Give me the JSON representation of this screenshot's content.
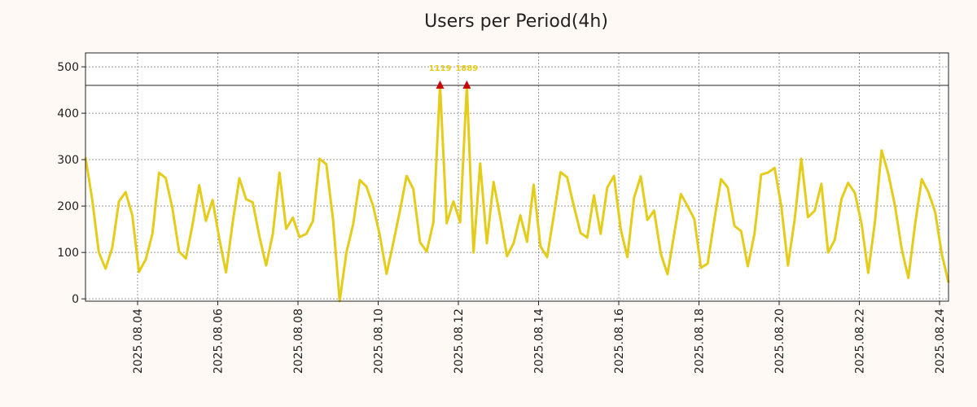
{
  "chart_data": {
    "type": "line",
    "title": "Users per Period(4h)",
    "xlabel": "",
    "ylabel": "",
    "ylim": [
      -5,
      530
    ],
    "y_ticks": [
      0,
      100,
      200,
      300,
      400,
      500
    ],
    "x_tick_labels": [
      "2025.08.04",
      "2025.08.06",
      "2025.08.08",
      "2025.08.10",
      "2025.08.12",
      "2025.08.14",
      "2025.08.16",
      "2025.08.18",
      "2025.08.20",
      "2025.08.22",
      "2025.08.24"
    ],
    "grid": true,
    "threshold": 460,
    "series": [
      {
        "name": "users",
        "color": "#e6cc1a",
        "values": [
          305,
          215,
          100,
          65,
          110,
          210,
          230,
          180,
          58,
          85,
          140,
          272,
          260,
          195,
          102,
          87,
          160,
          245,
          168,
          213,
          130,
          57,
          165,
          260,
          215,
          208,
          135,
          72,
          140,
          272,
          151,
          175,
          133,
          140,
          168,
          302,
          290,
          172,
          -5,
          100,
          160,
          256,
          242,
          200,
          136,
          54,
          120,
          190,
          265,
          237,
          122,
          102,
          165,
          460,
          163,
          210,
          165,
          460,
          100,
          292,
          120,
          252,
          175,
          92,
          120,
          180,
          123,
          246,
          113,
          90,
          180,
          273,
          262,
          200,
          142,
          132,
          223,
          140,
          240,
          265,
          150,
          90,
          218,
          264,
          170,
          190,
          97,
          53,
          140,
          226,
          200,
          172,
          67,
          76,
          170,
          258,
          240,
          157,
          146,
          70,
          140,
          268,
          272,
          282,
          200,
          72,
          170,
          302,
          176,
          190,
          248,
          100,
          127,
          215,
          250,
          228,
          162,
          56,
          165,
          320,
          270,
          200,
          108,
          45,
          160,
          258,
          230,
          187,
          96,
          35
        ]
      }
    ],
    "peaks": [
      {
        "index": 53,
        "label": "1119"
      },
      {
        "index": 57,
        "label": "1889"
      }
    ],
    "peak_marker_color": "#cc0000",
    "peak_label_color": "#e6cc1a"
  }
}
